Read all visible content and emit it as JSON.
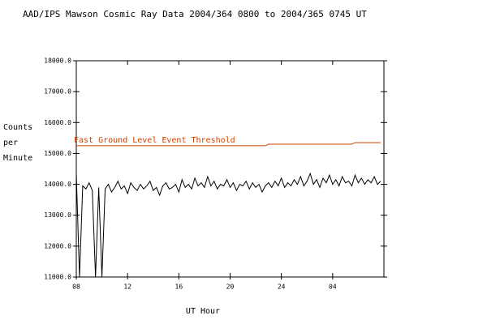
{
  "chart_data": {
    "type": "line",
    "title": "AAD/IPS Mawson Cosmic Ray Data 2004/364 0800 to 2004/365 0745 UT",
    "xlabel": "UT Hour",
    "ylabel": [
      "Counts",
      "per",
      "Minute"
    ],
    "xlim": [
      8,
      32
    ],
    "xticks": [
      {
        "value": 8,
        "label": "08"
      },
      12,
      16,
      20,
      24,
      {
        "value": 28,
        "label": "04"
      }
    ],
    "ylim": [
      11000,
      18000
    ],
    "yticks": [
      {
        "value": 11000,
        "label": "11000.0"
      },
      {
        "value": 12000,
        "label": "12000.0"
      },
      {
        "value": 13000,
        "label": "13000.0"
      },
      {
        "value": 14000,
        "label": "14000.0"
      },
      {
        "value": 15000,
        "label": "15000.0"
      },
      {
        "value": 16000,
        "label": "16000.0"
      },
      {
        "value": 17000,
        "label": "17000.0"
      },
      {
        "value": 18000,
        "label": "18000.0"
      }
    ],
    "x": [
      8,
      8.25,
      8.5,
      8.75,
      9,
      9.25,
      9.5,
      9.75,
      10,
      10.25,
      10.5,
      10.75,
      11,
      11.25,
      11.5,
      11.75,
      12,
      12.25,
      12.5,
      12.75,
      13,
      13.25,
      13.5,
      13.75,
      14,
      14.25,
      14.5,
      14.75,
      15,
      15.25,
      15.5,
      15.75,
      16,
      16.25,
      16.5,
      16.75,
      17,
      17.25,
      17.5,
      17.75,
      18,
      18.25,
      18.5,
      18.75,
      19,
      19.25,
      19.5,
      19.75,
      20,
      20.25,
      20.5,
      20.75,
      21,
      21.25,
      21.5,
      21.75,
      22,
      22.25,
      22.5,
      22.75,
      23,
      23.25,
      23.5,
      23.75,
      24,
      24.25,
      24.5,
      24.75,
      25,
      25.25,
      25.5,
      25.75,
      26,
      26.25,
      26.5,
      26.75,
      27,
      27.25,
      27.5,
      27.75,
      28,
      28.25,
      28.5,
      28.75,
      29,
      29.25,
      29.5,
      29.75,
      30,
      30.25,
      30.5,
      30.75,
      31,
      31.25,
      31.5,
      31.75
    ],
    "series": [
      {
        "color": "#000000",
        "values": [
          14350,
          11000,
          13950,
          13850,
          14050,
          13800,
          11000,
          13900,
          11000,
          13850,
          14000,
          13750,
          13900,
          14100,
          13850,
          13950,
          13700,
          14050,
          13900,
          13800,
          14000,
          13850,
          13950,
          14100,
          13800,
          13900,
          13650,
          13950,
          14050,
          13850,
          13900,
          14000,
          13750,
          14150,
          13900,
          14000,
          13850,
          14200,
          13950,
          14050,
          13900,
          14250,
          13950,
          14100,
          13850,
          14000,
          13950,
          14150,
          13900,
          14050,
          13800,
          14000,
          13950,
          14100,
          13850,
          14050,
          13900,
          14000,
          13750,
          13950,
          14050,
          13900,
          14100,
          13950,
          14200,
          13900,
          14050,
          13950,
          14150,
          14000,
          14250,
          13950,
          14100,
          14350,
          14000,
          14150,
          13900,
          14200,
          14050,
          14300,
          14000,
          14150,
          13950,
          14250,
          14050,
          14100,
          13950,
          14300,
          14050,
          14200,
          14000,
          14150,
          14050,
          14250,
          14000,
          14100
        ]
      },
      {
        "name": "Fast Ground Level Event Threshold",
        "color": "#d04000",
        "values": [
          15250,
          15250,
          15250,
          15250,
          15250,
          15250,
          15250,
          15250,
          15250,
          15250,
          15250,
          15250,
          15250,
          15250,
          15250,
          15250,
          15250,
          15250,
          15250,
          15250,
          15250,
          15250,
          15250,
          15250,
          15250,
          15250,
          15250,
          15250,
          15250,
          15250,
          15250,
          15250,
          15250,
          15250,
          15250,
          15250,
          15250,
          15250,
          15250,
          15250,
          15250,
          15250,
          15250,
          15250,
          15250,
          15250,
          15250,
          15250,
          15250,
          15250,
          15250,
          15250,
          15250,
          15250,
          15250,
          15250,
          15250,
          15250,
          15250,
          15250,
          15300,
          15300,
          15300,
          15300,
          15300,
          15300,
          15300,
          15300,
          15300,
          15300,
          15300,
          15300,
          15300,
          15300,
          15300,
          15300,
          15300,
          15300,
          15300,
          15300,
          15300,
          15300,
          15300,
          15300,
          15300,
          15300,
          15300,
          15350,
          15350,
          15350,
          15350,
          15350,
          15350,
          15350,
          15350,
          15350
        ]
      }
    ]
  }
}
